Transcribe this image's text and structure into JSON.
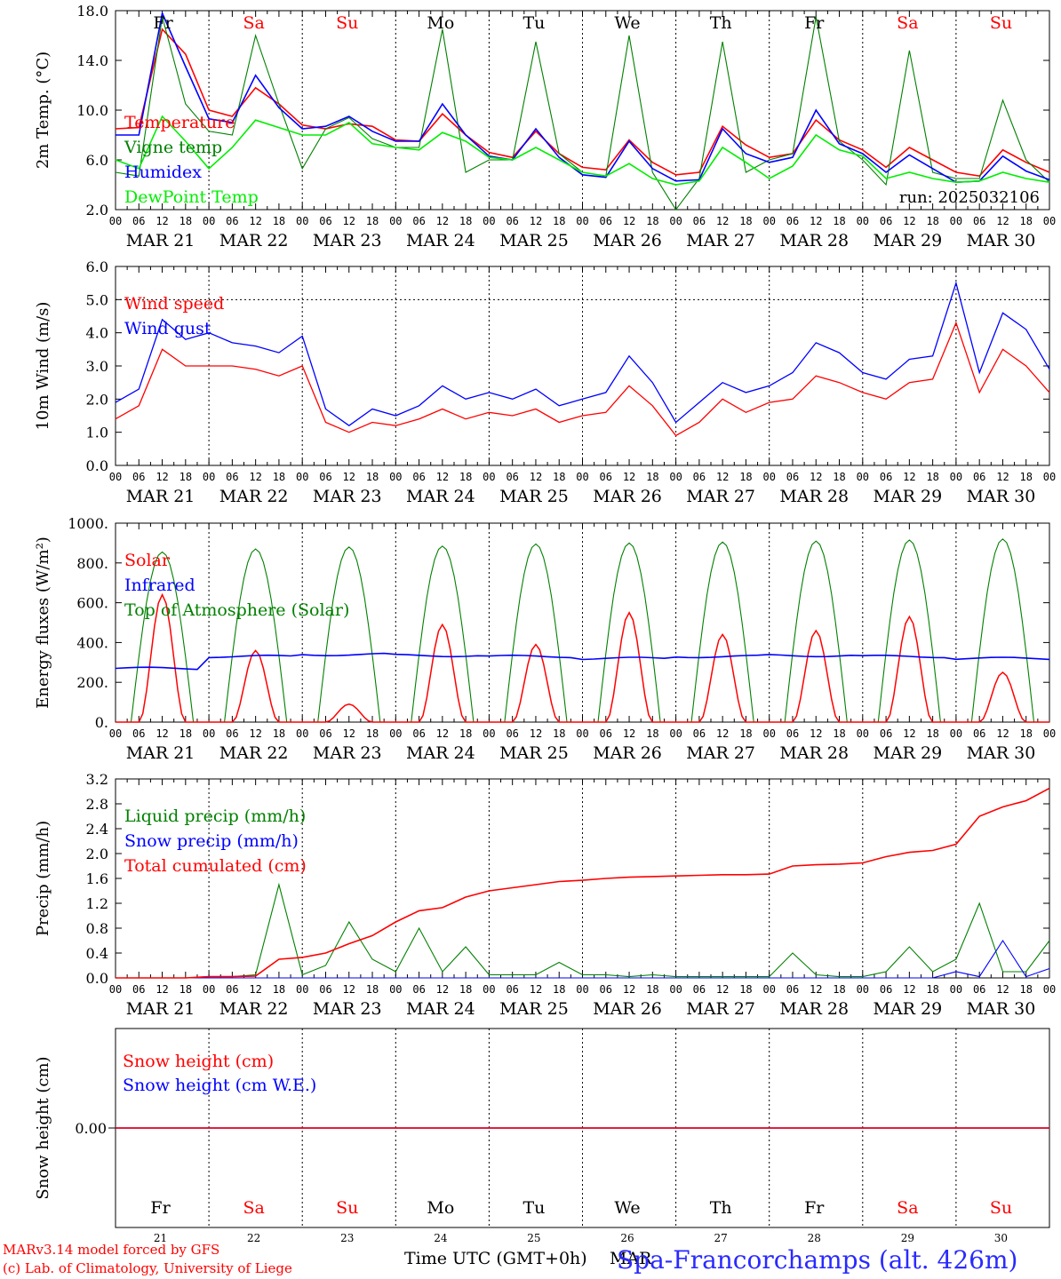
{
  "run_label": "run: 2025032106",
  "credit_line_1": "MARv3.14 model forced by GFS",
  "credit_line_2": "(c) Lab. of Climatology, University of Liege",
  "time_axis_label": "Time UTC (GMT+0h)",
  "month_fragment": "MAR",
  "station_label": "Spa-Francorchamps (alt. 426m)",
  "hour_ticks": [
    "00",
    "06",
    "12",
    "18"
  ],
  "day_labels": [
    "MAR 21",
    "MAR 22",
    "MAR 23",
    "MAR 24",
    "MAR 25",
    "MAR 26",
    "MAR 27",
    "MAR 28",
    "MAR 29",
    "MAR 30"
  ],
  "weekday_labels": [
    "Fr",
    "Sa",
    "Su",
    "Mo",
    "Tu",
    "We",
    "Th",
    "Fr",
    "Sa",
    "Su"
  ],
  "weekday_colors": [
    "#000000",
    "#ff0000",
    "#ff0000",
    "#000000",
    "#000000",
    "#000000",
    "#000000",
    "#000000",
    "#ff0000",
    "#ff0000"
  ],
  "day_numbers": [
    "21",
    "22",
    "23",
    "24",
    "25",
    "26",
    "27",
    "28",
    "29",
    "30"
  ],
  "chart_data": [
    {
      "type": "line",
      "ylabel": "2m Temp. (°C)",
      "ylim": [
        2.0,
        18.0
      ],
      "yticks": [
        "2.0",
        "6.0",
        "10.0",
        "14.0",
        "18.0"
      ],
      "grid": "vertical day separators (dotted)",
      "x": [
        "03-21 00",
        "03-21 06",
        "03-21 12",
        "03-21 18",
        "03-22 00",
        "03-22 06",
        "03-22 12",
        "03-22 18",
        "03-23 00",
        "03-23 06",
        "03-23 12",
        "03-23 18",
        "03-24 00",
        "03-24 06",
        "03-24 12",
        "03-24 18",
        "03-25 00",
        "03-25 06",
        "03-25 12",
        "03-25 18",
        "03-26 00",
        "03-26 06",
        "03-26 12",
        "03-26 18",
        "03-27 00",
        "03-27 06",
        "03-27 12",
        "03-27 18",
        "03-28 00",
        "03-28 06",
        "03-28 12",
        "03-28 18",
        "03-29 00",
        "03-29 06",
        "03-29 12",
        "03-29 18",
        "03-30 00",
        "03-30 06",
        "03-30 12",
        "03-30 18",
        "03-31 00"
      ],
      "series": [
        {
          "name": "Temperature",
          "color": "#ff0000",
          "values": [
            8.5,
            8.6,
            16.5,
            14.5,
            10.0,
            9.5,
            11.8,
            10.5,
            8.8,
            8.5,
            8.9,
            8.7,
            7.6,
            7.5,
            9.7,
            8.0,
            6.6,
            6.2,
            8.3,
            6.5,
            5.4,
            5.2,
            7.6,
            5.8,
            4.8,
            5.0,
            8.7,
            7.2,
            6.2,
            6.5,
            9.2,
            7.6,
            6.8,
            5.4,
            7.0,
            6.0,
            5.0,
            4.7,
            6.8,
            5.8,
            5.0
          ]
        },
        {
          "name": "Vigne temp",
          "color": "#008000",
          "values": [
            5.0,
            4.7,
            17.5,
            10.5,
            8.3,
            8.0,
            16.0,
            10.5,
            5.3,
            8.5,
            9.4,
            7.7,
            7.0,
            7.0,
            16.5,
            5.0,
            6.0,
            6.0,
            15.5,
            6.5,
            5.0,
            4.7,
            16.0,
            5.0,
            2.0,
            4.5,
            15.5,
            5.0,
            6.0,
            6.5,
            17.5,
            7.5,
            6.0,
            4.0,
            14.8,
            5.0,
            4.5,
            4.5,
            10.8,
            6.0,
            4.2
          ]
        },
        {
          "name": "Humidex",
          "color": "#0000ff",
          "values": [
            8.0,
            8.0,
            17.8,
            13.5,
            9.3,
            9.0,
            12.8,
            10.2,
            8.5,
            8.7,
            9.5,
            8.3,
            7.5,
            7.5,
            10.5,
            8.0,
            6.3,
            6.0,
            8.5,
            6.2,
            4.8,
            4.6,
            7.5,
            5.3,
            4.3,
            4.4,
            8.5,
            6.5,
            5.8,
            6.2,
            10.0,
            7.3,
            6.5,
            5.0,
            6.4,
            5.3,
            4.2,
            4.3,
            6.3,
            5.1,
            4.4
          ]
        },
        {
          "name": "DewPoint Temp",
          "color": "#00ee00",
          "values": [
            6.0,
            5.3,
            9.5,
            7.5,
            5.3,
            7.0,
            9.2,
            8.6,
            8.0,
            8.0,
            9.0,
            7.3,
            7.0,
            6.8,
            8.2,
            7.5,
            6.2,
            6.0,
            7.0,
            6.0,
            5.0,
            4.7,
            5.7,
            4.5,
            4.0,
            4.3,
            7.0,
            5.8,
            4.5,
            5.5,
            8.0,
            6.8,
            6.3,
            4.5,
            5.0,
            4.5,
            4.2,
            4.3,
            5.0,
            4.5,
            4.2
          ]
        }
      ]
    },
    {
      "type": "line",
      "ylabel": "10m Wind (m/s)",
      "ylim": [
        0.0,
        6.0
      ],
      "yticks": [
        "0.0",
        "1.0",
        "2.0",
        "3.0",
        "4.0",
        "5.0",
        "6.0"
      ],
      "reference_line": 5.0,
      "grid": "vertical day separators (dotted)",
      "x": [
        "03-21 00",
        "03-21 06",
        "03-21 12",
        "03-21 18",
        "03-22 00",
        "03-22 06",
        "03-22 12",
        "03-22 18",
        "03-23 00",
        "03-23 06",
        "03-23 12",
        "03-23 18",
        "03-24 00",
        "03-24 06",
        "03-24 12",
        "03-24 18",
        "03-25 00",
        "03-25 06",
        "03-25 12",
        "03-25 18",
        "03-26 00",
        "03-26 06",
        "03-26 12",
        "03-26 18",
        "03-27 00",
        "03-27 06",
        "03-27 12",
        "03-27 18",
        "03-28 00",
        "03-28 06",
        "03-28 12",
        "03-28 18",
        "03-29 00",
        "03-29 06",
        "03-29 12",
        "03-29 18",
        "03-30 00",
        "03-30 06",
        "03-30 12",
        "03-30 18",
        "03-31 00"
      ],
      "series": [
        {
          "name": "Wind speed",
          "color": "#ff0000",
          "values": [
            1.4,
            1.8,
            3.5,
            3.0,
            3.0,
            3.0,
            2.9,
            2.7,
            3.0,
            1.3,
            1.0,
            1.3,
            1.2,
            1.4,
            1.7,
            1.4,
            1.6,
            1.5,
            1.7,
            1.3,
            1.5,
            1.6,
            2.4,
            1.8,
            0.9,
            1.3,
            2.0,
            1.6,
            1.9,
            2.0,
            2.7,
            2.5,
            2.2,
            2.0,
            2.5,
            2.6,
            4.3,
            2.2,
            3.5,
            3.0,
            2.2
          ]
        },
        {
          "name": "Wind gust",
          "color": "#0000ff",
          "values": [
            1.9,
            2.3,
            4.4,
            3.8,
            4.0,
            3.7,
            3.6,
            3.4,
            3.9,
            1.7,
            1.2,
            1.7,
            1.5,
            1.8,
            2.4,
            2.0,
            2.2,
            2.0,
            2.3,
            1.8,
            2.0,
            2.2,
            3.3,
            2.5,
            1.3,
            1.9,
            2.5,
            2.2,
            2.4,
            2.8,
            3.7,
            3.4,
            2.8,
            2.6,
            3.2,
            3.3,
            5.5,
            2.8,
            4.6,
            4.1,
            2.9
          ]
        }
      ]
    },
    {
      "type": "line",
      "ylabel": "Energy fluxes (W/m²)",
      "ylim": [
        0,
        1000
      ],
      "yticks": [
        "0.",
        "200.",
        "400.",
        "600.",
        "800.",
        "1000."
      ],
      "grid": "vertical day separators (dotted)",
      "series": [
        {
          "name": "Solar",
          "color": "#ff0000",
          "daily_peaks": [
            640,
            360,
            90,
            490,
            390,
            550,
            440,
            460,
            530,
            250
          ]
        },
        {
          "name": "Infrared",
          "color": "#0000ff",
          "level_approx": [
            270,
            330,
            340,
            335,
            330,
            320,
            330,
            335,
            330,
            320
          ]
        },
        {
          "name": "Top of Atmosphere (Solar)",
          "color": "#008000",
          "daily_peaks": [
            855,
            870,
            880,
            885,
            895,
            900,
            905,
            910,
            915,
            920
          ]
        }
      ]
    },
    {
      "type": "line",
      "ylabel": "Precip (mm/h)",
      "ylim": [
        0.0,
        3.2
      ],
      "yticks": [
        "0.0",
        "0.4",
        "0.8",
        "1.2",
        "1.6",
        "2.0",
        "2.4",
        "2.8",
        "3.2"
      ],
      "grid": "vertical day separators (dotted)",
      "x": [
        "03-21 00",
        "03-21 06",
        "03-21 12",
        "03-21 18",
        "03-22 00",
        "03-22 06",
        "03-22 12",
        "03-22 18",
        "03-23 00",
        "03-23 06",
        "03-23 12",
        "03-23 18",
        "03-24 00",
        "03-24 06",
        "03-24 12",
        "03-24 18",
        "03-25 00",
        "03-25 06",
        "03-25 12",
        "03-25 18",
        "03-26 00",
        "03-26 06",
        "03-26 12",
        "03-26 18",
        "03-27 00",
        "03-27 06",
        "03-27 12",
        "03-27 18",
        "03-28 00",
        "03-28 06",
        "03-28 12",
        "03-28 18",
        "03-29 00",
        "03-29 06",
        "03-29 12",
        "03-29 18",
        "03-30 00",
        "03-30 06",
        "03-30 12",
        "03-30 18",
        "03-31 00"
      ],
      "series": [
        {
          "name": "Liquid precip (mm/h)",
          "color": "#008000",
          "values": [
            0,
            0,
            0,
            0,
            0.02,
            0.02,
            0.05,
            1.5,
            0.05,
            0.2,
            0.9,
            0.3,
            0.1,
            0.8,
            0.1,
            0.5,
            0.05,
            0.05,
            0.05,
            0.25,
            0.05,
            0.05,
            0.02,
            0.05,
            0.02,
            0.02,
            0.02,
            0.02,
            0.02,
            0.4,
            0.05,
            0.02,
            0.02,
            0.1,
            0.5,
            0.1,
            0.3,
            1.2,
            0.1,
            0.1,
            0.6
          ]
        },
        {
          "name": "Snow precip (mm/h)",
          "color": "#0000ff",
          "values": [
            0,
            0,
            0,
            0,
            0,
            0,
            0,
            0,
            0,
            0,
            0,
            0,
            0,
            0,
            0,
            0,
            0,
            0,
            0,
            0,
            0,
            0,
            0,
            0,
            0,
            0,
            0,
            0,
            0,
            0,
            0,
            0,
            0,
            0,
            0,
            0,
            0.1,
            0.02,
            0.6,
            0.02,
            0.15
          ]
        },
        {
          "name": "Total cumulated (cm)",
          "color": "#ff0000",
          "values": [
            0,
            0,
            0,
            0,
            0.02,
            0.02,
            0.03,
            0.3,
            0.33,
            0.4,
            0.55,
            0.68,
            0.9,
            1.08,
            1.13,
            1.3,
            1.4,
            1.45,
            1.5,
            1.55,
            1.57,
            1.6,
            1.62,
            1.63,
            1.64,
            1.65,
            1.66,
            1.66,
            1.67,
            1.8,
            1.82,
            1.83,
            1.85,
            1.95,
            2.02,
            2.05,
            2.15,
            2.6,
            2.75,
            2.85,
            3.05
          ]
        }
      ]
    },
    {
      "type": "line",
      "ylabel": "Snow height (cm)",
      "yticks": [
        "0.00"
      ],
      "series": [
        {
          "name": "Snow height (cm)",
          "color": "#ff0000",
          "values": [
            0,
            0,
            0,
            0,
            0,
            0,
            0,
            0,
            0,
            0,
            0
          ]
        },
        {
          "name": "Snow height (cm W.E.)",
          "color": "#0000ff",
          "values": [
            0,
            0,
            0,
            0,
            0,
            0,
            0,
            0,
            0,
            0,
            0
          ]
        }
      ]
    }
  ]
}
